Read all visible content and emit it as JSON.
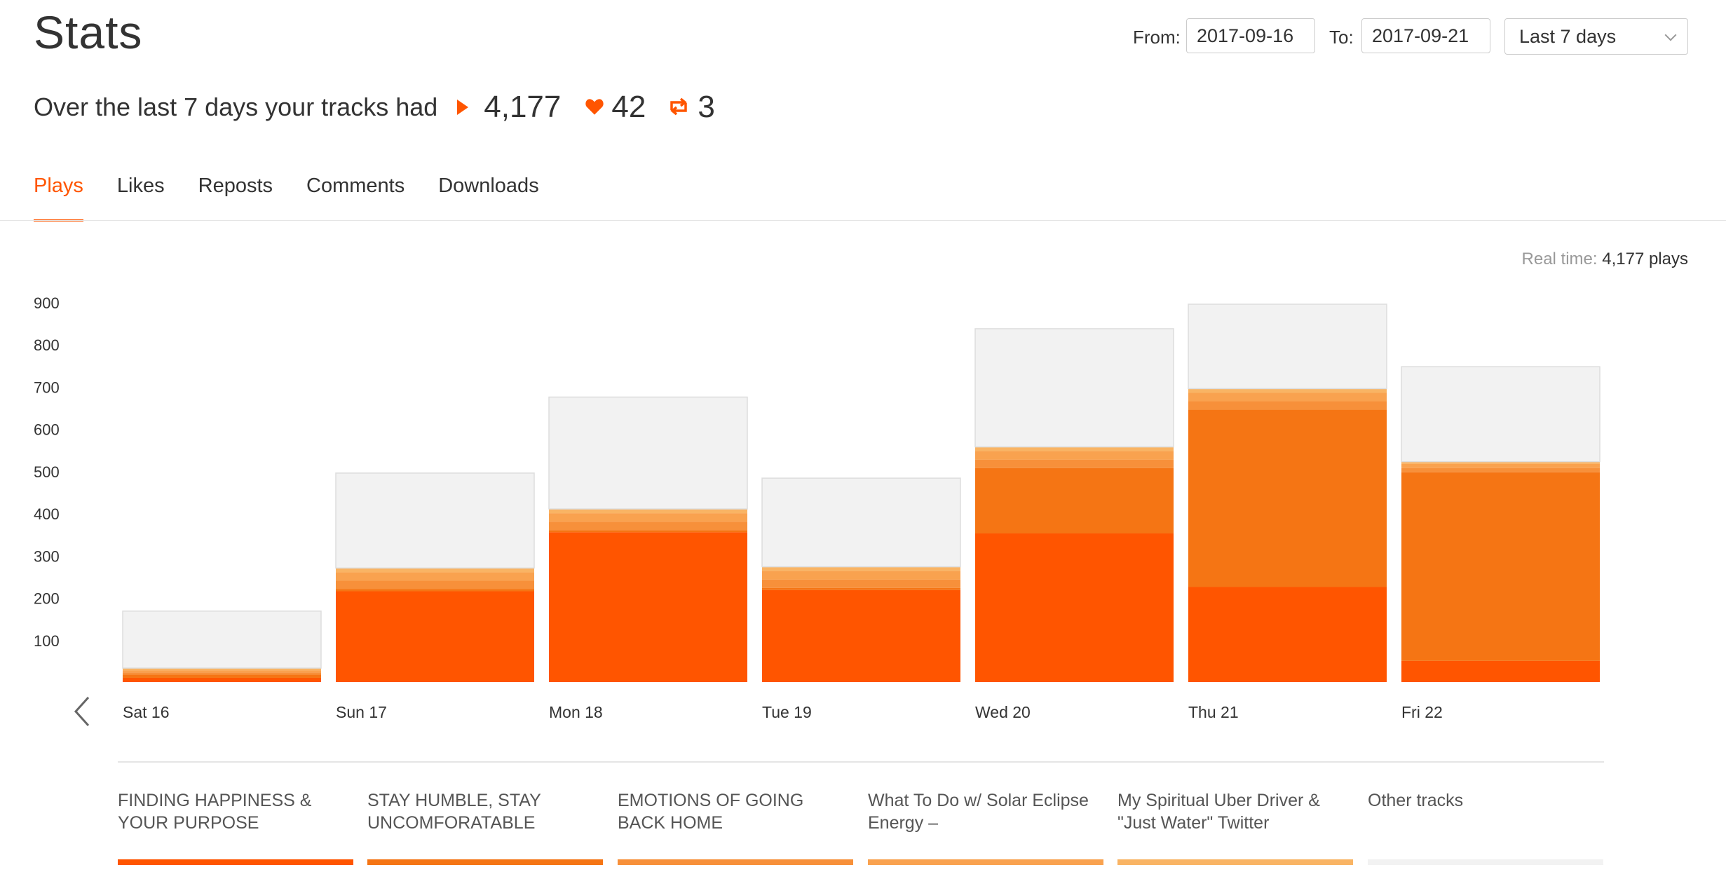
{
  "page": {
    "title": "Stats"
  },
  "date_range": {
    "from_label": "From:",
    "from_value": "2017-09-16",
    "to_label": "To:",
    "to_value": "2017-09-21",
    "range_selected": "Last 7 days"
  },
  "summary": {
    "text": "Over the last 7 days your tracks had",
    "plays": "4,177",
    "likes": "42",
    "reposts": "3"
  },
  "tabs": [
    {
      "label": "Plays",
      "active": true
    },
    {
      "label": "Likes",
      "active": false
    },
    {
      "label": "Reposts",
      "active": false
    },
    {
      "label": "Comments",
      "active": false
    },
    {
      "label": "Downloads",
      "active": false
    }
  ],
  "realtime": {
    "label": "Real time:",
    "value": "4,177 plays"
  },
  "colors": {
    "accent": "#ff5500",
    "track1": "#ff5500",
    "track2": "#f57514",
    "track3": "#f7903a",
    "track4": "#f9a24f",
    "track5": "#f9b464",
    "other": "#f2f2f2"
  },
  "chart_data": {
    "type": "bar",
    "stacked": true,
    "categories": [
      "Sat 16",
      "Sun 17",
      "Mon 18",
      "Tue 19",
      "Wed 20",
      "Thu 21",
      "Fri 22"
    ],
    "y_ticks": [
      100,
      200,
      300,
      400,
      500,
      600,
      700,
      800,
      900
    ],
    "ylim": [
      0,
      900
    ],
    "grid": false,
    "series": [
      {
        "name": "FINDING HAPPINESS & YOUR PURPOSE",
        "color": "#ff5500",
        "values": [
          10,
          215,
          355,
          218,
          352,
          225,
          50
        ]
      },
      {
        "name": "STAY HUMBLE, STAY UNCOMFORATABLE",
        "color": "#f57514",
        "values": [
          8,
          5,
          5,
          5,
          155,
          420,
          447
        ]
      },
      {
        "name": "EMOTIONS OF GOING BACK HOME",
        "color": "#f7903a",
        "values": [
          5,
          20,
          20,
          20,
          20,
          20,
          10
        ]
      },
      {
        "name": "What To Do w/ Solar Eclipse Energy –",
        "color": "#f9a24f",
        "values": [
          5,
          20,
          20,
          20,
          20,
          20,
          10
        ]
      },
      {
        "name": "My Spiritual Uber Driver & \"Just Water\" Twitter",
        "color": "#f9b464",
        "values": [
          5,
          10,
          10,
          10,
          10,
          10,
          5
        ]
      },
      {
        "name": "Other tracks",
        "color": "#f2f2f2",
        "values": [
          135,
          225,
          265,
          210,
          280,
          200,
          225
        ]
      }
    ]
  },
  "legend": {
    "items": [
      "FINDING HAPPINESS & YOUR PURPOSE",
      "STAY HUMBLE, STAY UNCOMFORATABLE",
      "EMOTIONS OF GOING BACK HOME",
      "What To Do w/ Solar Eclipse Energy –",
      "My Spiritual Uber Driver & \"Just Water\" Twitter",
      "Other tracks"
    ],
    "colors": [
      "#ff5500",
      "#f57514",
      "#f7903a",
      "#f9a24f",
      "#f9b464",
      "#f2f2f2"
    ]
  },
  "icons": {
    "play": "play-icon",
    "heart": "heart-icon",
    "repost": "repost-icon",
    "prev": "chevron-left-icon",
    "dropdown": "chevron-down-icon"
  }
}
